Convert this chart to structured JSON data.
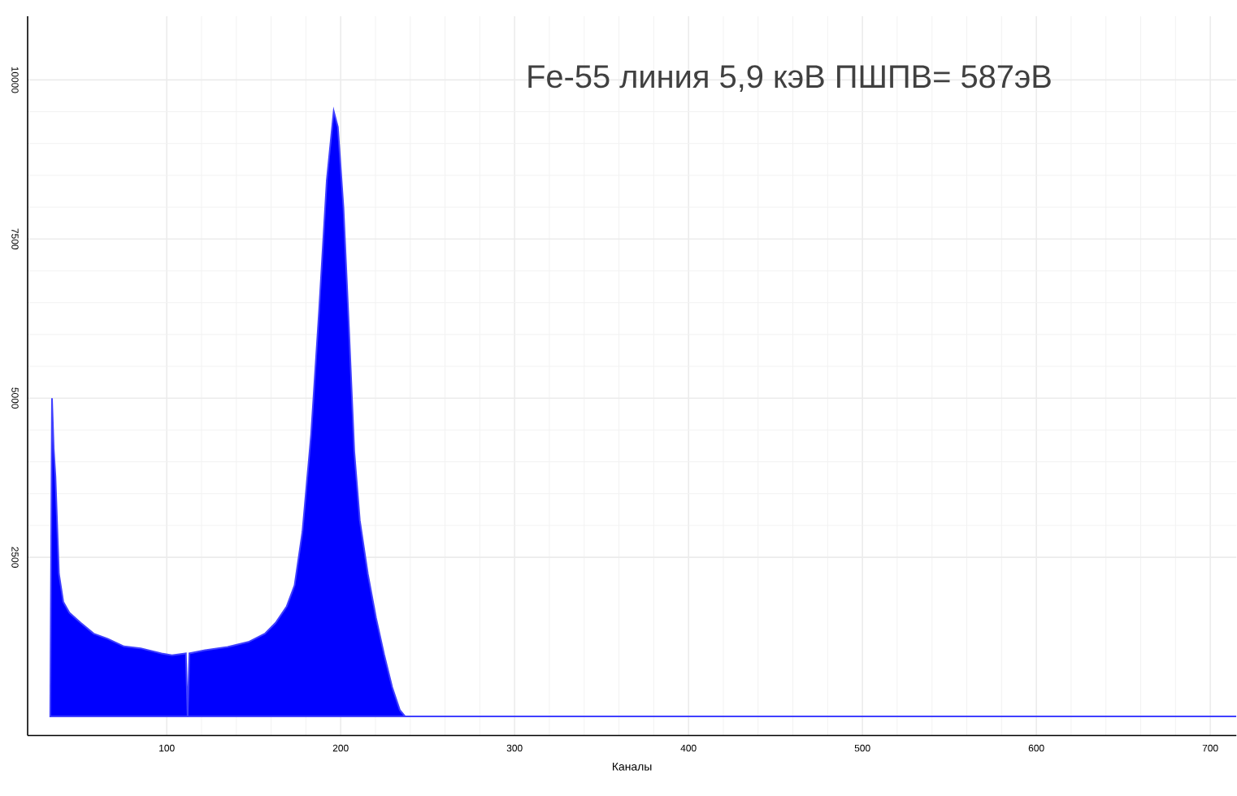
{
  "chart_data": {
    "type": "area",
    "title": "Fe-55  линия 5,9 кэВ ПШПВ= 587эВ",
    "xlabel": "Каналы",
    "series": [
      {
        "color": "#0000ff",
        "x": [
          33,
          34,
          35,
          36,
          38,
          40.5,
          44,
          50.5,
          58,
          66,
          75.4,
          85,
          97,
          103,
          111,
          112,
          113,
          122,
          135,
          147,
          156.4,
          162.6,
          169,
          173.5,
          178,
          183,
          187.6,
          192,
          196,
          198.4,
          201.6,
          204.7,
          207.8,
          211,
          215.6,
          220.3,
          225,
          229.6,
          234,
          237,
          715
        ],
        "values": [
          0,
          5000,
          4200,
          3760,
          2240,
          1800,
          1630,
          1470,
          1300,
          1220,
          1100,
          1070,
          990,
          960,
          990,
          0,
          990,
          1040,
          1090,
          1170,
          1300,
          1470,
          1730,
          2060,
          2900,
          4430,
          6380,
          8420,
          9510,
          9260,
          7990,
          6130,
          4170,
          3080,
          2240,
          1550,
          970,
          460,
          100,
          0,
          0
        ]
      }
    ],
    "xlim": [
      20,
      715
    ],
    "ylim": [
      -300,
      11000
    ],
    "xticks": [
      100,
      200,
      300,
      400,
      500,
      600,
      700
    ],
    "yticks": [
      2500,
      5000,
      7500,
      10000
    ],
    "grid": true
  }
}
